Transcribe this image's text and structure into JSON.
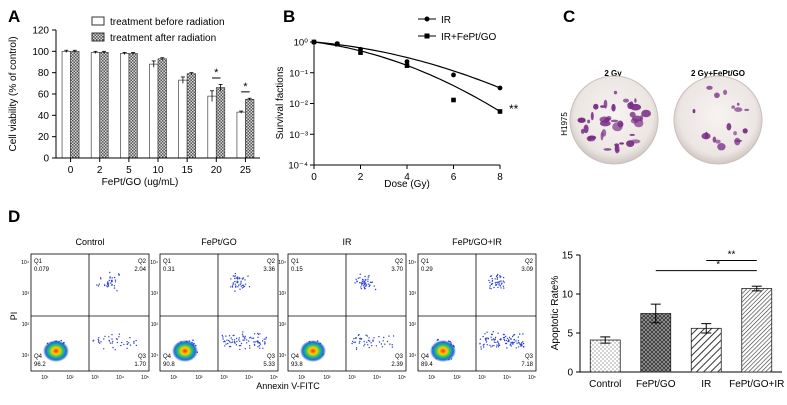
{
  "panels": {
    "A": "A",
    "B": "B",
    "C": "C",
    "D": "D"
  },
  "chart_data": [
    {
      "panel": "A",
      "type": "bar",
      "categories": [
        "0",
        "2",
        "5",
        "10",
        "15",
        "20",
        "25"
      ],
      "series": [
        {
          "name": "treatment before radiation",
          "values": [
            100,
            99,
            98,
            88,
            73,
            58,
            43
          ],
          "errors": [
            1,
            1,
            1,
            3,
            3,
            5,
            1
          ]
        },
        {
          "name": "treatment after radiation",
          "values": [
            100,
            99,
            98,
            93,
            79,
            66,
            55
          ],
          "errors": [
            1,
            1,
            1,
            1,
            1,
            3,
            1
          ]
        }
      ],
      "xlabel": "FePt/GO (ug/mL)",
      "ylabel": "Cell viability (% of control)",
      "ylim": [
        0,
        120
      ],
      "yticks": [
        0,
        20,
        40,
        60,
        80,
        100,
        120
      ],
      "annotations": [
        {
          "category": "20",
          "text": "*"
        },
        {
          "category": "25",
          "text": "*"
        }
      ],
      "legend": "top-right"
    },
    {
      "panel": "B",
      "type": "line",
      "yscale": "log",
      "xlabel": "Dose (Gy)",
      "ylabel": "Survival factions",
      "xlim": [
        0,
        8
      ],
      "xticks": [
        0,
        2,
        4,
        6,
        8
      ],
      "ylim": [
        0.0001,
        1
      ],
      "ytick_labels": [
        "10⁰",
        "10⁻¹",
        "10⁻²",
        "10⁻³",
        "10⁻⁴"
      ],
      "series": [
        {
          "name": "IR",
          "marker": "circle",
          "x": [
            0,
            1,
            2,
            4,
            6,
            8
          ],
          "y": [
            1,
            0.88,
            0.58,
            0.23,
            0.085,
            0.032
          ]
        },
        {
          "name": "IR+FePt/GO",
          "marker": "square",
          "x": [
            0,
            1,
            2,
            4,
            6,
            8
          ],
          "y": [
            1,
            0.85,
            0.45,
            0.17,
            0.013,
            0.0055
          ]
        }
      ],
      "annotation": "**",
      "legend": "top-right"
    },
    {
      "panel": "D",
      "type": "bar",
      "categories": [
        "Control",
        "FePt/GO",
        "IR",
        "FePt/GO+IR"
      ],
      "values": [
        4.1,
        7.5,
        5.6,
        10.7
      ],
      "errors": [
        0.4,
        1.2,
        0.6,
        0.3
      ],
      "ylabel": "Apoptotic Rate%",
      "ylim": [
        0,
        15
      ],
      "yticks": [
        0,
        5,
        10,
        15
      ],
      "annotations": [
        {
          "pair": [
            "FePt/GO",
            "FePt/GO+IR"
          ],
          "text": "*"
        },
        {
          "pair": [
            "IR",
            "FePt/GO+IR"
          ],
          "text": "**"
        }
      ]
    }
  ],
  "colony": {
    "dishes": [
      {
        "label": "2 Gy"
      },
      {
        "label": "2 Gy+FePt/GO"
      }
    ],
    "cell_line": "H1975",
    "colony_color": "#7a2f86"
  },
  "flow": {
    "plots": [
      {
        "title": "Control",
        "q1": "0.079",
        "q2": "2.04",
        "q3": "1.70",
        "q4": "96.2"
      },
      {
        "title": "FePt/GO",
        "q1": "0.31",
        "q2": "3.36",
        "q3": "5.33",
        "q4": "90.8"
      },
      {
        "title": "IR",
        "q1": "0.15",
        "q2": "3.70",
        "q3": "2.39",
        "q4": "93.8"
      },
      {
        "title": "FePt/GO+IR",
        "q1": "0.29",
        "q2": "3.09",
        "q3": "7.18",
        "q4": "89.4"
      }
    ],
    "quadrant_names": {
      "q1": "Q1",
      "q2": "Q2",
      "q3": "Q3",
      "q4": "Q4"
    },
    "xlabel": "Annexin V-FITC",
    "ylabel": "PI",
    "axis_ticks": [
      "10¹",
      "10²",
      "10³",
      "10⁴",
      "10⁵"
    ]
  }
}
